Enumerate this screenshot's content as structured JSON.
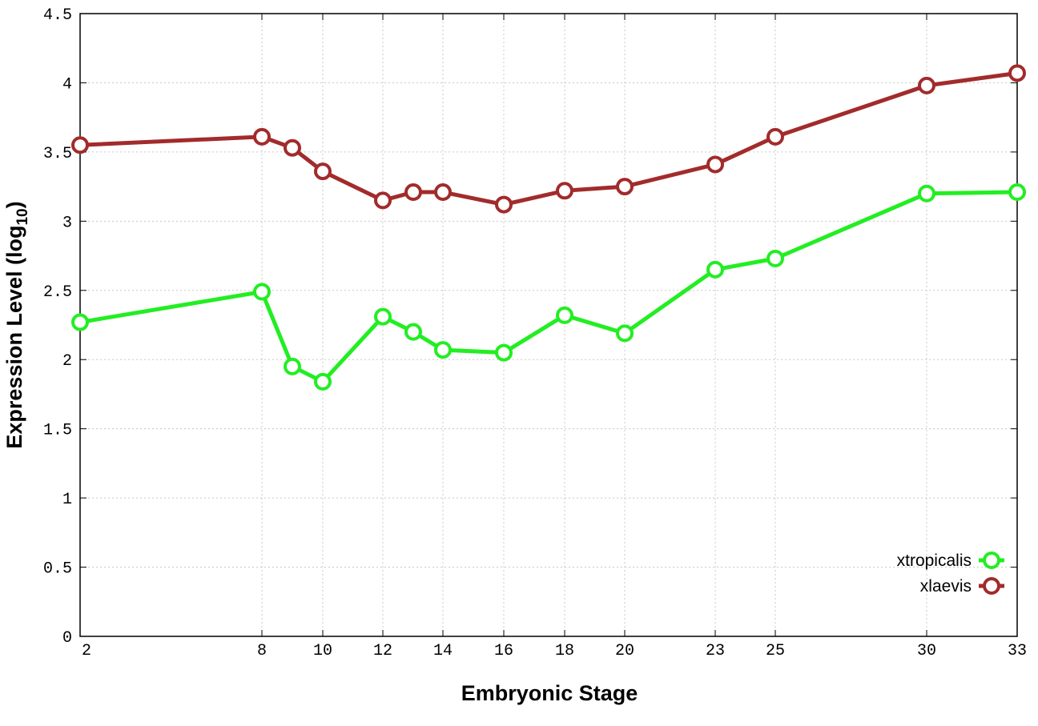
{
  "chart_data": {
    "type": "line",
    "x_tick_labels": [
      "2",
      "8",
      "10",
      "12",
      "14",
      "16",
      "18",
      "20",
      "23",
      "25",
      "30",
      "33"
    ],
    "y_tick_labels": [
      "0",
      "0.5",
      "1",
      "1.5",
      "2",
      "2.5",
      "3",
      "3.5",
      "4",
      "4.5"
    ],
    "xlabel": "Embryonic Stage",
    "ylabel_main": "Expression Level (log",
    "ylabel_sub": "10",
    "ylabel_close": ")",
    "ylim": [
      0,
      4.5
    ],
    "grid": true,
    "legend_position": "bottom-right",
    "series": [
      {
        "name": "xtropicalis",
        "color": "#22ee22",
        "marker": "open-circle",
        "points": [
          {
            "x": "2",
            "y": 2.27
          },
          {
            "x": "8",
            "y": 2.49
          },
          {
            "x": "9",
            "y": 1.95
          },
          {
            "x": "10",
            "y": 1.84
          },
          {
            "x": "12",
            "y": 2.31
          },
          {
            "x": "13",
            "y": 2.2
          },
          {
            "x": "14",
            "y": 2.07
          },
          {
            "x": "16",
            "y": 2.05
          },
          {
            "x": "18",
            "y": 2.32
          },
          {
            "x": "20",
            "y": 2.19
          },
          {
            "x": "23",
            "y": 2.65
          },
          {
            "x": "25",
            "y": 2.73
          },
          {
            "x": "30",
            "y": 3.2
          },
          {
            "x": "33",
            "y": 3.21
          }
        ]
      },
      {
        "name": "xlaevis",
        "color": "#a22b2b",
        "marker": "open-circle",
        "points": [
          {
            "x": "2",
            "y": 3.55
          },
          {
            "x": "8",
            "y": 3.61
          },
          {
            "x": "9",
            "y": 3.53
          },
          {
            "x": "10",
            "y": 3.36
          },
          {
            "x": "12",
            "y": 3.15
          },
          {
            "x": "13",
            "y": 3.21
          },
          {
            "x": "14",
            "y": 3.21
          },
          {
            "x": "16",
            "y": 3.12
          },
          {
            "x": "18",
            "y": 3.22
          },
          {
            "x": "20",
            "y": 3.25
          },
          {
            "x": "23",
            "y": 3.41
          },
          {
            "x": "25",
            "y": 3.61
          },
          {
            "x": "30",
            "y": 3.98
          },
          {
            "x": "33",
            "y": 4.07
          }
        ]
      }
    ]
  }
}
